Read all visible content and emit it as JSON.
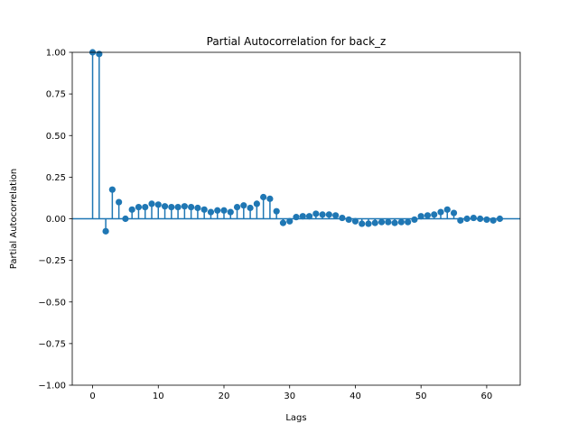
{
  "chart_data": {
    "type": "stem",
    "title": "Partial Autocorrelation for back_z",
    "xlabel": "Lags",
    "ylabel": "Partial Autocorrelation",
    "xlim": [
      -3.1,
      65.1
    ],
    "ylim": [
      -1.0,
      1.0
    ],
    "xticks": [
      0,
      10,
      20,
      30,
      40,
      50,
      60
    ],
    "yticks": [
      -1.0,
      -0.75,
      -0.5,
      -0.25,
      0.0,
      0.25,
      0.5,
      0.75,
      1.0
    ],
    "ytick_labels": [
      "−1.00",
      "−0.75",
      "−0.50",
      "−0.25",
      "0.00",
      "0.25",
      "0.50",
      "0.75",
      "1.00"
    ],
    "grid": false,
    "color": "#1f77b4",
    "series": [
      {
        "x": [
          0,
          1,
          2,
          3,
          4,
          5,
          6,
          7,
          8,
          9,
          10,
          11,
          12,
          13,
          14,
          15,
          16,
          17,
          18,
          19,
          20,
          21,
          22,
          23,
          24,
          25,
          26,
          27,
          28,
          29,
          30,
          31,
          32,
          33,
          34,
          35,
          36,
          37,
          38,
          39,
          40,
          41,
          42,
          43,
          44,
          45,
          46,
          47,
          48,
          49,
          50,
          51,
          52,
          53,
          54,
          55,
          56,
          57,
          58,
          59,
          60,
          61,
          62
        ],
        "values": [
          1.0,
          0.99,
          -0.075,
          0.175,
          0.1,
          0.0,
          0.055,
          0.07,
          0.07,
          0.09,
          0.085,
          0.075,
          0.07,
          0.07,
          0.075,
          0.07,
          0.065,
          0.055,
          0.04,
          0.05,
          0.05,
          0.04,
          0.07,
          0.08,
          0.065,
          0.09,
          0.13,
          0.12,
          0.045,
          -0.025,
          -0.015,
          0.01,
          0.015,
          0.015,
          0.03,
          0.025,
          0.025,
          0.02,
          0.005,
          -0.005,
          -0.015,
          -0.03,
          -0.03,
          -0.025,
          -0.02,
          -0.02,
          -0.025,
          -0.02,
          -0.02,
          -0.005,
          0.015,
          0.02,
          0.025,
          0.04,
          0.055,
          0.035,
          -0.01,
          0.0,
          0.005,
          0.0,
          -0.005,
          -0.01,
          0.0
        ]
      }
    ]
  }
}
